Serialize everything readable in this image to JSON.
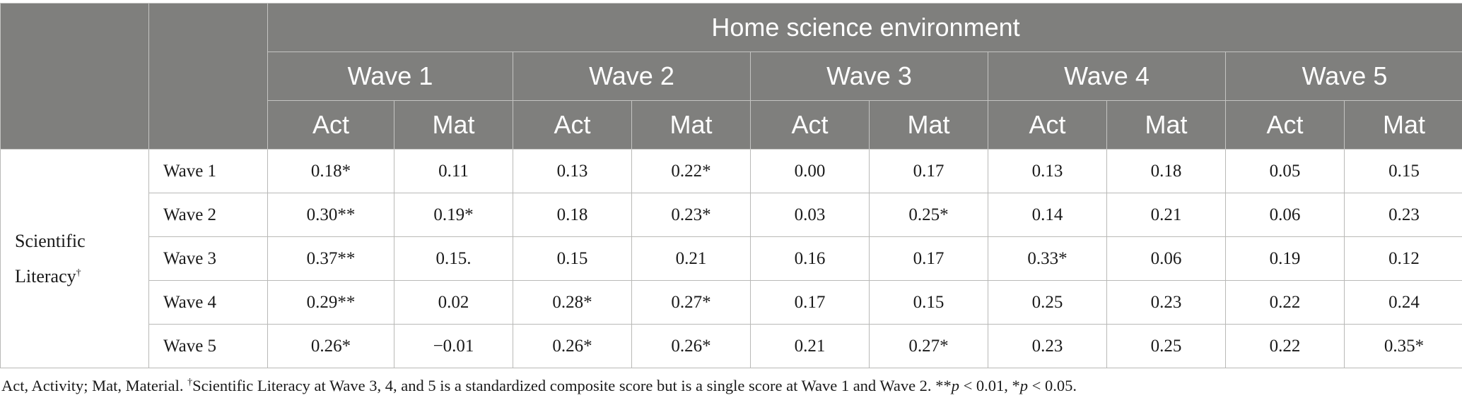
{
  "table": {
    "group_header": "Home science environment",
    "waves": [
      "Wave 1",
      "Wave 2",
      "Wave 3",
      "Wave 4",
      "Wave 5"
    ],
    "subcolumns": [
      "Act",
      "Mat",
      "Act",
      "Mat",
      "Act",
      "Mat",
      "Act",
      "Mat",
      "Act",
      "Mat"
    ],
    "row_group_label": "Scientific Literacy",
    "row_group_marker": "†",
    "rows": [
      {
        "label": "Wave 1",
        "values": [
          "0.18*",
          "0.11",
          "0.13",
          "0.22*",
          "0.00",
          "0.17",
          "0.13",
          "0.18",
          "0.05",
          "0.15"
        ]
      },
      {
        "label": "Wave 2",
        "values": [
          "0.30**",
          "0.19*",
          "0.18",
          "0.23*",
          "0.03",
          "0.25*",
          "0.14",
          "0.21",
          "0.06",
          "0.23"
        ]
      },
      {
        "label": "Wave 3",
        "values": [
          "0.37**",
          "0.15.",
          "0.15",
          "0.21",
          "0.16",
          "0.17",
          "0.33*",
          "0.06",
          "0.19",
          "0.12"
        ]
      },
      {
        "label": "Wave 4",
        "values": [
          "0.29**",
          "0.02",
          "0.28*",
          "0.27*",
          "0.17",
          "0.15",
          "0.25",
          "0.23",
          "0.22",
          "0.24"
        ]
      },
      {
        "label": "Wave 5",
        "values": [
          "0.26*",
          "−0.01",
          "0.26*",
          "0.26*",
          "0.21",
          "0.27*",
          "0.23",
          "0.25",
          "0.22",
          "0.35*"
        ]
      }
    ]
  },
  "footnote": {
    "abbrev": "Act, Activity; Mat, Material.",
    "marker": "†",
    "text": "Scientific Literacy at Wave 3, 4, and 5 is a standardized composite score but is a single score at Wave 1 and Wave 2.",
    "sig_1_stars": "**",
    "sig_1_p": "p",
    "sig_1_rest": " < 0.01, ",
    "sig_2_stars": "*",
    "sig_2_p": "p",
    "sig_2_rest": " < 0.05."
  }
}
